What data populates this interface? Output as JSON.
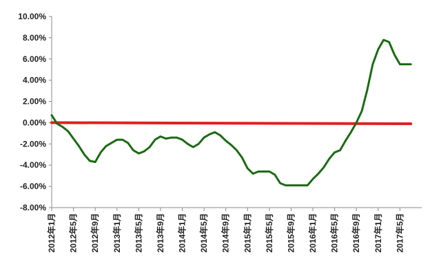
{
  "chart_data": {
    "type": "line",
    "title": "",
    "xlabel": "",
    "ylabel": "",
    "ylim": [
      -0.08,
      0.1
    ],
    "y_ticks": [
      0.1,
      0.08,
      0.06,
      0.04,
      0.02,
      0.0,
      -0.02,
      -0.04,
      -0.06,
      -0.08
    ],
    "y_tick_labels": [
      "10.00%",
      "8.00%",
      "6.00%",
      "4.00%",
      "2.00%",
      "0.00%",
      "-2.00%",
      "-4.00%",
      "-6.00%",
      "-8.00%"
    ],
    "x_tick_labels": [
      "2012年1月",
      "2012年5月",
      "2012年9月",
      "2013年1月",
      "2013年5月",
      "2013年9月",
      "2014年1月",
      "2014年5月",
      "2014年9月",
      "2015年1月",
      "2015年5月",
      "2015年9月",
      "2016年1月",
      "2016年5月",
      "2016年9月",
      "2017年1月",
      "2017年5月"
    ],
    "x_tick_months": [
      0,
      4,
      8,
      12,
      16,
      20,
      24,
      28,
      32,
      36,
      40,
      44,
      48,
      52,
      56,
      60,
      64
    ],
    "x_range": [
      0,
      68
    ],
    "grid": false,
    "legend": "none",
    "series": [
      {
        "color": "#1a6b12",
        "x_months": [
          0,
          1,
          2,
          3,
          4,
          5,
          6,
          7,
          8,
          9,
          10,
          11,
          12,
          13,
          14,
          15,
          16,
          17,
          18,
          19,
          20,
          21,
          22,
          23,
          24,
          25,
          26,
          27,
          28,
          29,
          30,
          31,
          32,
          33,
          34,
          35,
          36,
          37,
          38,
          39,
          40,
          41,
          42,
          43,
          44,
          45,
          46,
          47,
          48,
          49,
          50,
          51,
          52,
          53,
          54,
          55,
          56,
          57,
          58,
          59,
          60,
          61,
          62,
          63,
          64,
          65,
          66
        ],
        "values": [
          0.007,
          -0.001,
          -0.004,
          -0.008,
          -0.015,
          -0.022,
          -0.03,
          -0.036,
          -0.037,
          -0.028,
          -0.022,
          -0.019,
          -0.016,
          -0.016,
          -0.019,
          -0.026,
          -0.029,
          -0.027,
          -0.023,
          -0.016,
          -0.013,
          -0.015,
          -0.014,
          -0.014,
          -0.016,
          -0.02,
          -0.023,
          -0.02,
          -0.014,
          -0.011,
          -0.009,
          -0.012,
          -0.017,
          -0.021,
          -0.026,
          -0.033,
          -0.043,
          -0.048,
          -0.046,
          -0.046,
          -0.046,
          -0.049,
          -0.057,
          -0.059,
          -0.059,
          -0.059,
          -0.059,
          -0.059,
          -0.053,
          -0.048,
          -0.042,
          -0.034,
          -0.028,
          -0.026,
          -0.017,
          -0.009,
          0.0,
          0.011,
          0.031,
          0.055,
          0.069,
          0.078,
          0.076,
          0.064,
          0.055,
          0.055,
          0.055
        ]
      },
      {
        "color": "#e02020",
        "x_months": [
          0,
          66
        ],
        "values": [
          0.0,
          -0.001
        ]
      }
    ]
  }
}
